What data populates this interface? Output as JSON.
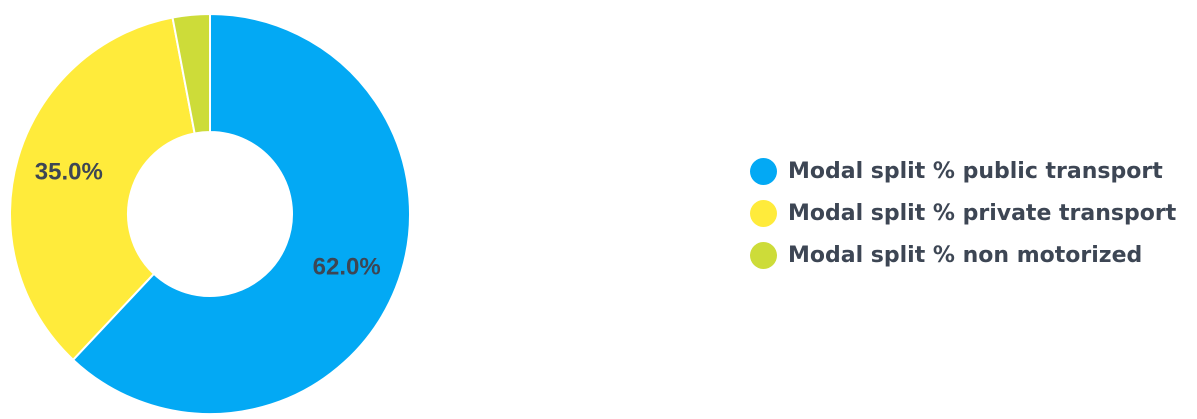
{
  "chart_data": {
    "type": "pie",
    "categories": [
      "Modal split % public transport",
      "Modal split % private transport",
      "Modal split % non motorized"
    ],
    "values": [
      62.0,
      35.0,
      3.0
    ],
    "data_labels": [
      "62.0%",
      "35.0%",
      ""
    ],
    "colors": [
      "#03a9f4",
      "#ffeb3b",
      "#cddc39"
    ],
    "donut": true,
    "legend_position": "right",
    "title": ""
  },
  "legend": {
    "items": [
      {
        "label": "Modal split % public transport",
        "color": "#03a9f4"
      },
      {
        "label": "Modal split % private transport",
        "color": "#ffeb3b"
      },
      {
        "label": "Modal split % non motorized",
        "color": "#cddc39"
      }
    ]
  }
}
